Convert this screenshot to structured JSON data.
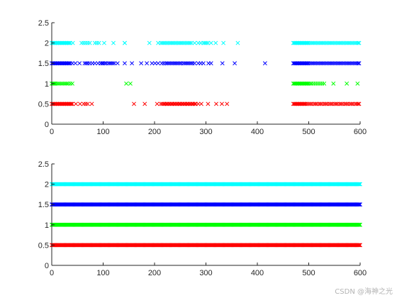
{
  "chart_data": [
    {
      "type": "scatter",
      "marker": "x",
      "grid": false,
      "xlim": [
        0,
        600
      ],
      "ylim": [
        0,
        2.5
      ],
      "xticks": [
        "0",
        "100",
        "200",
        "300",
        "400",
        "500",
        "600"
      ],
      "yticks": [
        "0",
        "0.5",
        "1",
        "1.5",
        "2",
        "2.5"
      ],
      "series": [
        {
          "color": "#ff0000",
          "y": 0.5,
          "x": [
            0,
            2,
            4,
            6,
            8,
            10,
            12,
            14,
            16,
            18,
            20,
            22,
            24,
            26,
            28,
            30,
            32,
            34,
            36,
            38,
            40,
            47,
            55,
            62,
            66,
            70,
            78,
            160,
            181,
            205,
            212,
            215,
            218,
            220,
            223,
            225,
            228,
            230,
            233,
            235,
            238,
            240,
            243,
            245,
            248,
            250,
            253,
            255,
            258,
            260,
            263,
            265,
            268,
            270,
            273,
            275,
            278,
            280,
            285,
            291,
            304,
            320,
            331,
            341,
            470,
            472,
            474,
            476,
            478,
            480,
            482,
            484,
            486,
            488,
            490,
            492,
            494,
            497,
            500,
            503,
            506,
            510,
            513,
            516,
            520,
            523,
            526,
            530,
            533,
            536,
            540,
            543,
            546,
            550,
            553,
            556,
            560,
            563,
            566,
            570,
            573,
            576,
            580,
            583,
            586,
            590,
            593,
            596,
            598
          ]
        },
        {
          "color": "#00ff00",
          "y": 1.0,
          "x": [
            0,
            2,
            4,
            6,
            8,
            11,
            14,
            17,
            20,
            23,
            26,
            29,
            32,
            36,
            40,
            145,
            153,
            470,
            472,
            474,
            476,
            478,
            480,
            482,
            484,
            486,
            488,
            490,
            492,
            494,
            496,
            498,
            500,
            503,
            506,
            510,
            514,
            518,
            522,
            526,
            530,
            548,
            574,
            595
          ]
        },
        {
          "color": "#0000ff",
          "y": 1.5,
          "x": [
            0,
            2,
            4,
            6,
            8,
            10,
            12,
            14,
            16,
            18,
            20,
            22,
            24,
            26,
            28,
            30,
            32,
            34,
            36,
            40,
            46,
            54,
            64,
            67,
            70,
            74,
            79,
            84,
            90,
            95,
            98,
            100,
            103,
            106,
            110,
            113,
            116,
            119,
            122,
            128,
            142,
            156,
            174,
            185,
            195,
            201,
            207,
            214,
            218,
            222,
            225,
            228,
            231,
            234,
            237,
            240,
            243,
            246,
            249,
            252,
            256,
            259,
            262,
            265,
            268,
            271,
            274,
            278,
            285,
            290,
            295,
            305,
            310,
            332,
            356,
            415,
            470,
            472,
            474,
            476,
            478,
            480,
            482,
            484,
            486,
            488,
            490,
            492,
            494,
            496,
            498,
            500,
            503,
            506,
            509,
            512,
            515,
            518,
            521,
            524,
            527,
            530,
            533,
            536,
            539,
            542,
            545,
            548,
            551,
            554,
            557,
            560,
            563,
            566,
            569,
            572,
            575,
            578,
            581,
            584,
            587,
            590,
            593,
            596,
            598
          ]
        },
        {
          "color": "#00ffff",
          "y": 2.0,
          "x": [
            0,
            2,
            4,
            6,
            8,
            10,
            12,
            14,
            16,
            18,
            20,
            22,
            24,
            26,
            28,
            30,
            32,
            34,
            36,
            41,
            58,
            62,
            66,
            70,
            74,
            84,
            88,
            92,
            102,
            120,
            142,
            142,
            190,
            207,
            212,
            215,
            218,
            221,
            224,
            227,
            230,
            233,
            236,
            239,
            242,
            245,
            248,
            251,
            254,
            257,
            260,
            263,
            266,
            269,
            272,
            278,
            285,
            290,
            295,
            298,
            301,
            304,
            310,
            319,
            334,
            362,
            470,
            472,
            474,
            476,
            478,
            480,
            482,
            484,
            486,
            488,
            490,
            492,
            494,
            496,
            498,
            500,
            503,
            506,
            509,
            512,
            515,
            518,
            521,
            524,
            527,
            530,
            533,
            536,
            539,
            542,
            545,
            548,
            551,
            554,
            557,
            560,
            563,
            566,
            569,
            572,
            575,
            578,
            581,
            584,
            587,
            590,
            593,
            596,
            598
          ]
        }
      ]
    },
    {
      "type": "scatter",
      "marker": "x",
      "grid": false,
      "xlim": [
        0,
        600
      ],
      "ylim": [
        0,
        2.5
      ],
      "xticks": [
        "0",
        "100",
        "200",
        "300",
        "400",
        "500",
        "600"
      ],
      "yticks": [
        "0",
        "0.5",
        "1",
        "1.5",
        "2",
        "2.5"
      ],
      "series": [
        {
          "color": "#ff0000",
          "y": 0.5,
          "range": [
            0,
            600
          ]
        },
        {
          "color": "#00ff00",
          "y": 1.0,
          "range": [
            0,
            600
          ]
        },
        {
          "color": "#0000ff",
          "y": 1.5,
          "range": [
            0,
            600
          ]
        },
        {
          "color": "#00ffff",
          "y": 2.0,
          "range": [
            0,
            600
          ]
        }
      ]
    }
  ],
  "watermark": "CSDN @海神之光"
}
